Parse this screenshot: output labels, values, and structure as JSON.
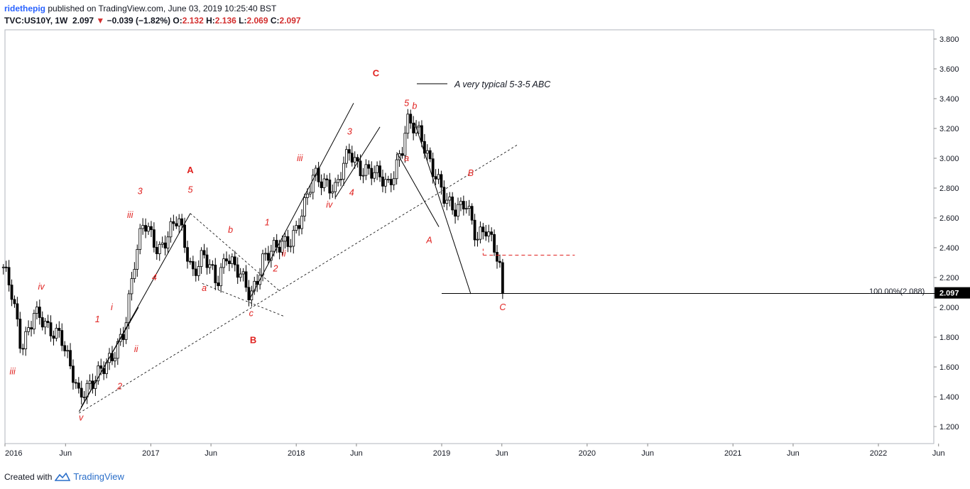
{
  "header": {
    "publisher": "ridethepig",
    "published_text": "published on TradingView.com, June 03, 2019 10:25:40 BST",
    "symbol": "TVC:US10Y, 1W",
    "last": "2.097",
    "change": "−0.039 (−1.82%)",
    "o_label": "O:",
    "o_val": "2.132",
    "h_label": "H:",
    "h_val": "2.136",
    "l_label": "L:",
    "l_val": "2.069",
    "c_label": "C:",
    "c_val": "2.097"
  },
  "footer": {
    "created_with": "Created with",
    "brand": "TradingView"
  },
  "colors": {
    "up": "#ffffff",
    "down": "#000000",
    "label": "#e0211f",
    "axis": "#131722",
    "price_box": "#000000"
  },
  "chart_data": {
    "type": "candlestick",
    "title": "",
    "ylim": [
      1.0,
      3.9
    ],
    "y_ticks": [
      "3.800",
      "3.600",
      "3.400",
      "3.200",
      "3.000",
      "2.800",
      "2.600",
      "2.400",
      "2.200",
      "2.000",
      "1.800",
      "1.600",
      "1.400",
      "1.200"
    ],
    "x_ticks": [
      "2016",
      "Jun",
      "2017",
      "Jun",
      "2018",
      "Jun",
      "2019",
      "Jun",
      "2020",
      "Jun",
      "2021",
      "Jun",
      "2022",
      "Jun"
    ],
    "last_price_label": "2.097",
    "fib_label": "100.00%(2.088)",
    "close_path": [
      [
        "2015-12-28",
        2.27
      ],
      [
        "2016-01-20",
        2.05
      ],
      [
        "2016-02-10",
        1.73
      ],
      [
        "2016-03-14",
        1.98
      ],
      [
        "2016-04-20",
        1.82
      ],
      [
        "2016-05-20",
        1.85
      ],
      [
        "2016-07-05",
        1.37
      ],
      [
        "2016-08-20",
        1.58
      ],
      [
        "2016-09-25",
        1.62
      ],
      [
        "2016-10-25",
        1.85
      ],
      [
        "2016-11-20",
        2.3
      ],
      [
        "2016-12-14",
        2.55
      ],
      [
        "2017-01-20",
        2.4
      ],
      [
        "2017-03-10",
        2.58
      ],
      [
        "2017-04-15",
        2.25
      ],
      [
        "2017-05-12",
        2.35
      ],
      [
        "2017-06-15",
        2.15
      ],
      [
        "2017-07-10",
        2.38
      ],
      [
        "2017-08-10",
        2.22
      ],
      [
        "2017-09-08",
        2.06
      ],
      [
        "2017-10-10",
        2.35
      ],
      [
        "2017-11-15",
        2.38
      ],
      [
        "2017-12-20",
        2.48
      ],
      [
        "2018-01-20",
        2.65
      ],
      [
        "2018-02-15",
        2.88
      ],
      [
        "2018-03-20",
        2.85
      ],
      [
        "2018-04-10",
        2.78
      ],
      [
        "2018-05-15",
        3.05
      ],
      [
        "2018-06-10",
        2.95
      ],
      [
        "2018-07-15",
        2.88
      ],
      [
        "2018-08-20",
        2.84
      ],
      [
        "2018-09-25",
        3.06
      ],
      [
        "2018-10-05",
        3.22
      ],
      [
        "2018-11-10",
        3.18
      ],
      [
        "2018-12-15",
        2.88
      ],
      [
        "2019-01-10",
        2.7
      ],
      [
        "2019-02-05",
        2.68
      ],
      [
        "2019-03-01",
        2.72
      ],
      [
        "2019-03-30",
        2.42
      ],
      [
        "2019-04-20",
        2.55
      ],
      [
        "2019-05-10",
        2.46
      ],
      [
        "2019-05-25",
        2.3
      ],
      [
        "2019-06-03",
        2.097
      ]
    ],
    "wave_labels": [
      {
        "text": "iii",
        "date": "2016-01-20",
        "price": 1.55,
        "bold": false
      },
      {
        "text": "iv",
        "date": "2016-04-01",
        "price": 2.12,
        "bold": false
      },
      {
        "text": "v",
        "date": "2016-07-10",
        "price": 1.24,
        "bold": false
      },
      {
        "text": "1",
        "date": "2016-08-20",
        "price": 1.9,
        "bold": false
      },
      {
        "text": "i",
        "date": "2016-09-25",
        "price": 1.98,
        "bold": false
      },
      {
        "text": "2",
        "date": "2016-10-15",
        "price": 1.45,
        "bold": false
      },
      {
        "text": "ii",
        "date": "2016-11-25",
        "price": 1.7,
        "bold": false
      },
      {
        "text": "iii",
        "date": "2016-11-10",
        "price": 2.6,
        "bold": false
      },
      {
        "text": "3",
        "date": "2016-12-05",
        "price": 2.76,
        "bold": false
      },
      {
        "text": "4",
        "date": "2017-01-10",
        "price": 2.18,
        "bold": false
      },
      {
        "text": "5",
        "date": "2017-04-10",
        "price": 2.77,
        "bold": false
      },
      {
        "text": "A",
        "date": "2017-04-10",
        "price": 2.9,
        "bold": true
      },
      {
        "text": "a",
        "date": "2017-05-15",
        "price": 2.11,
        "bold": false
      },
      {
        "text": "b",
        "date": "2017-07-20",
        "price": 2.5,
        "bold": false
      },
      {
        "text": "c",
        "date": "2017-09-10",
        "price": 1.94,
        "bold": false
      },
      {
        "text": "B",
        "date": "2017-09-15",
        "price": 1.76,
        "bold": true
      },
      {
        "text": "1",
        "date": "2017-10-20",
        "price": 2.55,
        "bold": false
      },
      {
        "text": "2",
        "date": "2017-11-10",
        "price": 2.24,
        "bold": false
      },
      {
        "text": "ii",
        "date": "2017-12-01",
        "price": 2.34,
        "bold": false
      },
      {
        "text": "iii",
        "date": "2018-01-10",
        "price": 2.98,
        "bold": false
      },
      {
        "text": "iv",
        "date": "2018-03-25",
        "price": 2.67,
        "bold": false
      },
      {
        "text": "3",
        "date": "2018-05-15",
        "price": 3.16,
        "bold": false
      },
      {
        "text": "4",
        "date": "2018-05-20",
        "price": 2.75,
        "bold": false
      },
      {
        "text": "5",
        "date": "2018-10-05",
        "price": 3.35,
        "bold": false
      },
      {
        "text": "b",
        "date": "2018-10-25",
        "price": 3.33,
        "bold": false
      },
      {
        "text": "a",
        "date": "2018-10-05",
        "price": 2.98,
        "bold": false
      },
      {
        "text": "B",
        "date": "2019-03-15",
        "price": 2.88,
        "bold": false
      },
      {
        "text": "A",
        "date": "2018-12-01",
        "price": 2.43,
        "bold": false
      },
      {
        "text": "C",
        "date": "2019-06-03",
        "price": 1.98,
        "bold": false
      },
      {
        "text": "C",
        "date": "2018-07-20",
        "price": 3.55,
        "bold": true
      }
    ],
    "legend_note": "A very typical 5-3-5 ABC"
  }
}
